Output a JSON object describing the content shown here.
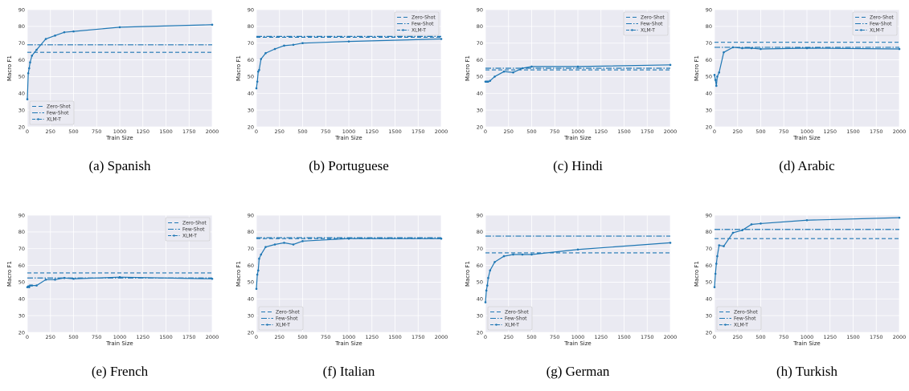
{
  "colors": {
    "line": "#1f77b4",
    "panel_bg": "#eaeaf2",
    "grid": "#ffffff"
  },
  "chart_data": [
    {
      "type": "line",
      "caption": "(a) Spanish",
      "xlabel": "Train Size",
      "ylabel": "Macro F1",
      "xlim": [
        0,
        2000
      ],
      "ylim": [
        20,
        90
      ],
      "xticks": [
        0,
        250,
        500,
        750,
        1000,
        1250,
        1500,
        1750,
        2000
      ],
      "yticks": [
        20,
        30,
        40,
        50,
        60,
        70,
        80,
        90
      ],
      "grid": true,
      "legend_position": "lower-left",
      "zero_shot": 64.5,
      "few_shot": 69.0,
      "series": [
        {
          "name": "XLM-T",
          "x": [
            0,
            10,
            20,
            30,
            50,
            100,
            200,
            300,
            400,
            500,
            1000,
            2000
          ],
          "y": [
            36.5,
            52.0,
            55.0,
            58.5,
            62.5,
            66.0,
            72.5,
            74.5,
            76.5,
            77.0,
            79.5,
            81.0
          ]
        }
      ],
      "legend": [
        "Zero-Shot",
        "Few-Shot",
        "XLM-T"
      ]
    },
    {
      "type": "line",
      "caption": "(b) Portuguese",
      "xlabel": "Train Size",
      "ylabel": "Macro F1",
      "xlim": [
        0,
        2000
      ],
      "ylim": [
        20,
        90
      ],
      "xticks": [
        0,
        250,
        500,
        750,
        1000,
        1250,
        1500,
        1750,
        2000
      ],
      "yticks": [
        20,
        30,
        40,
        50,
        60,
        70,
        80,
        90
      ],
      "grid": true,
      "legend_position": "upper-right",
      "zero_shot": 73.5,
      "few_shot": 74.0,
      "series": [
        {
          "name": "XLM-T",
          "x": [
            0,
            10,
            20,
            30,
            50,
            100,
            200,
            300,
            400,
            500,
            1000,
            2000
          ],
          "y": [
            43.0,
            47.0,
            53.0,
            54.0,
            60.5,
            64.0,
            66.5,
            68.5,
            69.0,
            70.0,
            71.0,
            72.5
          ]
        }
      ],
      "legend": [
        "Zero-Shot",
        "Few-Shot",
        "XLM-T"
      ]
    },
    {
      "type": "line",
      "caption": "(c) Hindi",
      "xlabel": "Train Size",
      "ylabel": "Macro F1",
      "xlim": [
        0,
        2000
      ],
      "ylim": [
        20,
        90
      ],
      "xticks": [
        0,
        250,
        500,
        750,
        1000,
        1250,
        1500,
        1750,
        2000
      ],
      "yticks": [
        20,
        30,
        40,
        50,
        60,
        70,
        80,
        90
      ],
      "grid": true,
      "legend_position": "upper-right",
      "zero_shot": 54.0,
      "few_shot": 55.0,
      "series": [
        {
          "name": "XLM-T",
          "x": [
            0,
            10,
            20,
            30,
            50,
            100,
            200,
            300,
            400,
            500,
            1000,
            2000
          ],
          "y": [
            47.0,
            47.0,
            47.0,
            47.0,
            47.5,
            50.0,
            53.0,
            52.5,
            55.0,
            56.0,
            56.0,
            57.0
          ]
        }
      ],
      "legend": [
        "Zero-Shot",
        "Few-Shot",
        "XLM-T"
      ]
    },
    {
      "type": "line",
      "caption": "(d) Arabic",
      "xlabel": "Train Size",
      "ylabel": "Macro F1",
      "xlim": [
        0,
        2000
      ],
      "ylim": [
        20,
        90
      ],
      "xticks": [
        0,
        250,
        500,
        750,
        1000,
        1250,
        1500,
        1750,
        2000
      ],
      "yticks": [
        20,
        30,
        40,
        50,
        60,
        70,
        80,
        90
      ],
      "grid": true,
      "legend_position": "upper-right",
      "zero_shot": 70.5,
      "few_shot": 67.5,
      "series": [
        {
          "name": "XLM-T",
          "x": [
            0,
            10,
            20,
            30,
            50,
            100,
            200,
            300,
            400,
            500,
            1000,
            2000
          ],
          "y": [
            51.0,
            48.0,
            44.5,
            50.0,
            52.5,
            64.5,
            67.5,
            67.0,
            67.0,
            66.5,
            67.0,
            66.5
          ]
        }
      ],
      "legend": [
        "Zero-Shot",
        "Few-Shot",
        "XLM-T"
      ]
    },
    {
      "type": "line",
      "caption": "(e) French",
      "xlabel": "Train Size",
      "ylabel": "Macro F1",
      "xlim": [
        0,
        2000
      ],
      "ylim": [
        20,
        90
      ],
      "xticks": [
        0,
        250,
        500,
        750,
        1000,
        1250,
        1500,
        1750,
        2000
      ],
      "yticks": [
        20,
        30,
        40,
        50,
        60,
        70,
        80,
        90
      ],
      "grid": true,
      "legend_position": "upper-right",
      "zero_shot": 55.5,
      "few_shot": 52.5,
      "series": [
        {
          "name": "XLM-T",
          "x": [
            0,
            10,
            20,
            30,
            50,
            100,
            200,
            300,
            400,
            500,
            1000,
            2000
          ],
          "y": [
            47.0,
            47.5,
            47.0,
            48.0,
            48.0,
            48.0,
            51.5,
            51.5,
            52.5,
            52.0,
            53.0,
            52.0
          ]
        }
      ],
      "legend": [
        "Zero-Shot",
        "Few-Shot",
        "XLM-T"
      ]
    },
    {
      "type": "line",
      "caption": "(f) Italian",
      "xlabel": "Train Size",
      "ylabel": "Macro F1",
      "xlim": [
        0,
        2000
      ],
      "ylim": [
        20,
        90
      ],
      "xticks": [
        0,
        250,
        500,
        750,
        1000,
        1250,
        1500,
        1750,
        2000
      ],
      "yticks": [
        20,
        30,
        40,
        50,
        60,
        70,
        80,
        90
      ],
      "grid": true,
      "legend_position": "lower-left",
      "zero_shot": 76.0,
      "few_shot": 76.5,
      "series": [
        {
          "name": "XLM-T",
          "x": [
            0,
            10,
            20,
            30,
            50,
            100,
            200,
            300,
            400,
            500,
            1000,
            2000
          ],
          "y": [
            46.0,
            54.5,
            57.0,
            64.0,
            66.5,
            71.0,
            72.5,
            73.5,
            72.5,
            74.5,
            76.0,
            76.0
          ]
        }
      ],
      "legend": [
        "Zero-Shot",
        "Few-Shot",
        "XLM-T"
      ]
    },
    {
      "type": "line",
      "caption": "(g) German",
      "xlabel": "Train Size",
      "ylabel": "Macro F1",
      "xlim": [
        0,
        2000
      ],
      "ylim": [
        20,
        90
      ],
      "xticks": [
        0,
        250,
        500,
        750,
        1000,
        1250,
        1500,
        1750,
        2000
      ],
      "yticks": [
        20,
        30,
        40,
        50,
        60,
        70,
        80,
        90
      ],
      "grid": true,
      "legend_position": "lower-left",
      "zero_shot": 67.5,
      "few_shot": 77.5,
      "series": [
        {
          "name": "XLM-T",
          "x": [
            0,
            10,
            20,
            30,
            50,
            100,
            200,
            300,
            400,
            500,
            1000,
            2000
          ],
          "y": [
            38.0,
            45.0,
            48.0,
            52.5,
            57.0,
            62.0,
            65.5,
            66.5,
            66.5,
            66.5,
            69.5,
            73.5
          ]
        }
      ],
      "legend": [
        "Zero-Shot",
        "Few-Shot",
        "XLM-T"
      ]
    },
    {
      "type": "line",
      "caption": "(h) Turkish",
      "xlabel": "Train Size",
      "ylabel": "Macro F1",
      "xlim": [
        0,
        2000
      ],
      "ylim": [
        20,
        90
      ],
      "xticks": [
        0,
        250,
        500,
        750,
        1000,
        1250,
        1500,
        1750,
        2000
      ],
      "yticks": [
        20,
        30,
        40,
        50,
        60,
        70,
        80,
        90
      ],
      "grid": true,
      "legend_position": "lower-left",
      "zero_shot": 76.0,
      "few_shot": 81.5,
      "series": [
        {
          "name": "XLM-T",
          "x": [
            0,
            10,
            20,
            30,
            50,
            100,
            200,
            300,
            400,
            500,
            1000,
            2000
          ],
          "y": [
            47.0,
            55.0,
            61.0,
            65.5,
            72.0,
            71.5,
            79.5,
            81.0,
            84.5,
            85.0,
            87.0,
            88.5
          ]
        }
      ],
      "legend": [
        "Zero-Shot",
        "Few-Shot",
        "XLM-T"
      ]
    }
  ]
}
